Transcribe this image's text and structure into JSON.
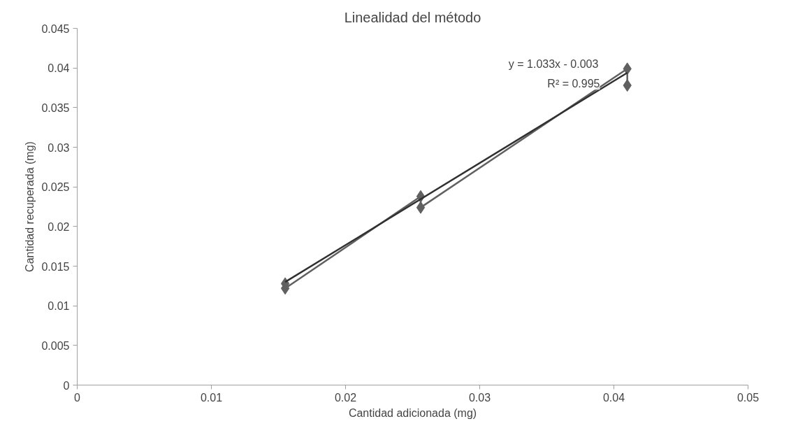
{
  "chart_data": {
    "type": "line",
    "title": "Linealidad del método",
    "xlabel": "Cantidad adicionada (mg)",
    "ylabel": "Cantidad recuperada (mg)",
    "x": [
      0.0155,
      0.0155,
      0.0256,
      0.0256,
      0.041,
      0.041
    ],
    "series": [
      {
        "color": "#606060",
        "marker": "diamond",
        "values": [
          0.0128,
          0.0122,
          0.0238,
          0.0224,
          0.0399,
          0.0378
        ]
      },
      {
        "type": "line",
        "color": "#303030",
        "marker": "none",
        "x": [
          0.0155,
          0.041
        ],
        "values": [
          0.013,
          0.0394
        ]
      }
    ],
    "annotations": [
      "y = 1.033x - 0.003",
      "R² = 0.995"
    ],
    "xlim": [
      0,
      0.05
    ],
    "xticks": [
      0,
      0.01,
      0.02,
      0.03,
      0.04,
      0.05
    ],
    "ylim": [
      0,
      0.045
    ],
    "yticks": [
      0,
      0.005,
      0.01,
      0.015,
      0.02,
      0.025,
      0.03,
      0.035,
      0.04,
      0.045
    ],
    "grid": false
  }
}
